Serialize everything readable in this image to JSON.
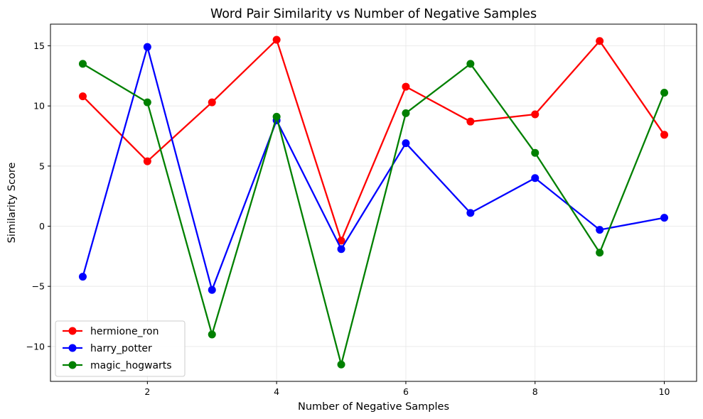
{
  "chart_data": {
    "type": "line",
    "title": "Word Pair Similarity vs Number of Negative Samples",
    "xlabel": "Number of Negative Samples",
    "ylabel": "Similarity Score",
    "x": [
      1,
      2,
      3,
      4,
      5,
      6,
      7,
      8,
      9,
      10
    ],
    "xlim": [
      0.5,
      10.5
    ],
    "ylim": [
      -12.9,
      16.8
    ],
    "xticks": [
      2,
      4,
      6,
      8,
      10
    ],
    "yticks": [
      -10,
      -5,
      0,
      5,
      10,
      15
    ],
    "ytick_labels": [
      "−10",
      "−5",
      "0",
      "5",
      "10",
      "15"
    ],
    "grid": true,
    "legend_position": "lower-left",
    "series": [
      {
        "name": "hermione_ron",
        "color": "#ff0000",
        "values": [
          10.8,
          5.4,
          10.3,
          15.5,
          -1.2,
          11.6,
          8.7,
          9.3,
          15.4,
          7.6
        ]
      },
      {
        "name": "harry_potter",
        "color": "#0000ff",
        "values": [
          -4.2,
          14.9,
          -5.3,
          8.8,
          -1.9,
          6.9,
          1.1,
          4.0,
          -0.3,
          0.7
        ]
      },
      {
        "name": "magic_hogwarts",
        "color": "#008000",
        "values": [
          13.5,
          10.3,
          -9.0,
          9.1,
          -11.5,
          9.4,
          13.5,
          6.1,
          -2.2,
          11.1
        ]
      }
    ]
  }
}
